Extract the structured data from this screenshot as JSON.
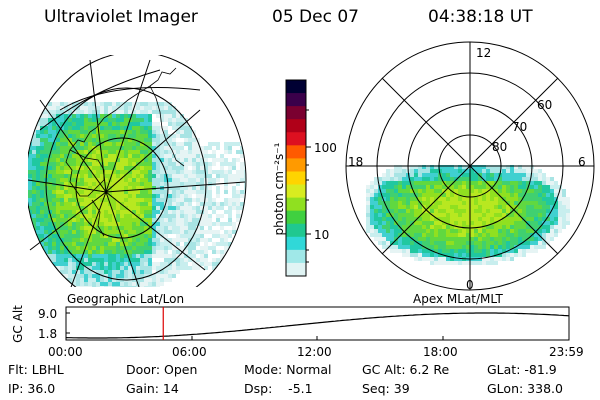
{
  "header": {
    "instrument": "Ultraviolet Imager",
    "date": "05 Dec 07",
    "time": "04:38:18 UT"
  },
  "panels": {
    "geographic": {
      "caption": "Geographic Lat/Lon"
    },
    "apex": {
      "caption": "Apex MLat/MLT",
      "mlt_labels": {
        "top": "12",
        "left": "18",
        "right": "6",
        "bottom": "0"
      },
      "lat_labels": [
        "60",
        "70",
        "80"
      ]
    }
  },
  "colorbar": {
    "unit_label": "photon cm⁻²s⁻¹",
    "tick_labels": [
      "100",
      "10"
    ],
    "colors": [
      "#000033",
      "#3a004a",
      "#7a0030",
      "#b00018",
      "#dd1020",
      "#ff5a00",
      "#ff9a00",
      "#ffd400",
      "#d8ec20",
      "#90e020",
      "#40d040",
      "#20c890",
      "#30d8d8",
      "#a0e8e8",
      "#e0f4f4"
    ]
  },
  "altitude_plot": {
    "ylabel": "GC Alt",
    "y_ticks": [
      "9.0",
      "1.8"
    ],
    "x_ticks": [
      "00:00",
      "06:00",
      "12:00",
      "18:00",
      "23:59"
    ],
    "current_time_hours": 4.64,
    "marker_color": "#dd0000"
  },
  "info": {
    "row1": {
      "filter": "Flt: LBHL",
      "door": "Door: Open",
      "mode": "Mode: Normal",
      "gc_alt": "GC Alt: 6.2 Re",
      "glat": "GLat: -81.9"
    },
    "row2": {
      "ip": "IP: 36.0",
      "gain": "Gain: 14",
      "dsp": "Dsp:    -5.1",
      "seq": "Seq: 39",
      "glon": "GLon: 338.0"
    }
  }
}
